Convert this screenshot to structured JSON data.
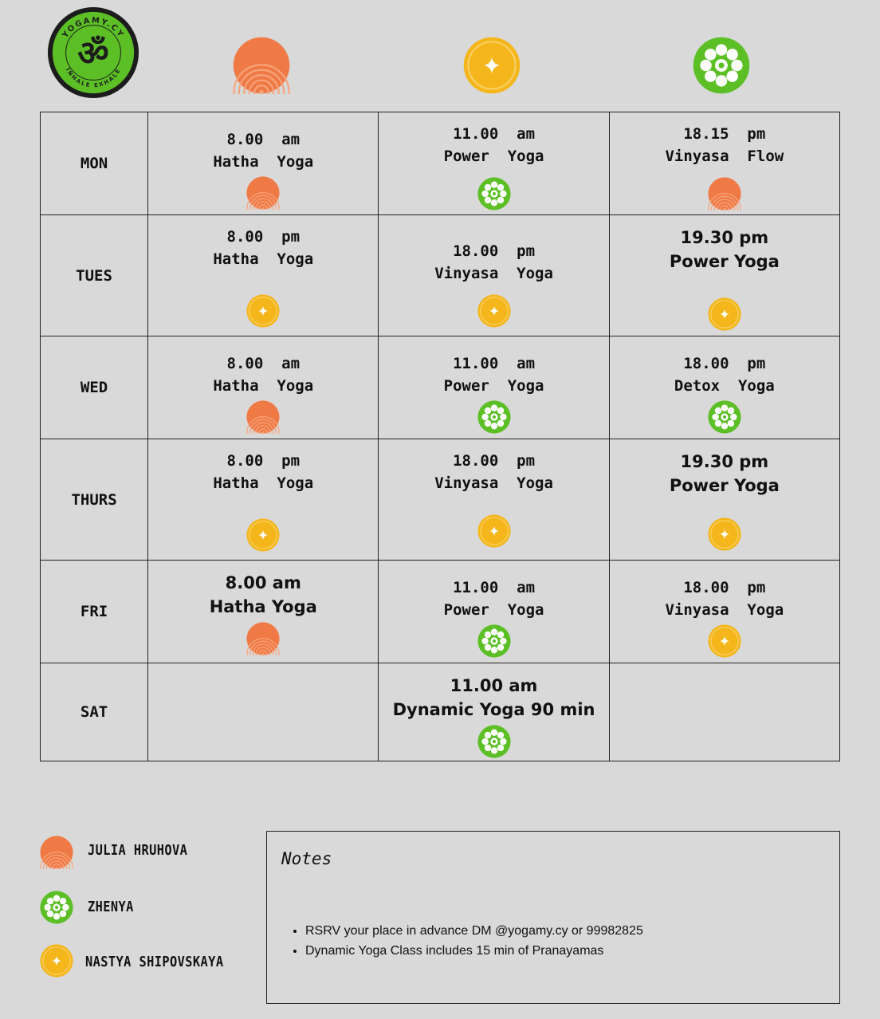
{
  "logo": {
    "name": "YOGAMY.CY",
    "tagline": "INHALE EXHALE",
    "glyph": "ॐ",
    "icon": "om-logo-icon"
  },
  "colors": {
    "orange": "#f07a45",
    "yellow": "#f4b61a",
    "green": "#5cbf26",
    "background": "#d9d9d9"
  },
  "instructors": [
    {
      "name": "JULIA HRUHOVA",
      "icon": "orange-rings-icon"
    },
    {
      "name": "ZHENYA",
      "icon": "green-asterisk-icon"
    },
    {
      "name": "NASTYA SHIPOVSKAYA",
      "icon": "yellow-star-icon"
    }
  ],
  "schedule": [
    {
      "day": "MON",
      "cells": [
        {
          "time": "8.00  am",
          "class": "Hatha  Yoga",
          "icon": "orange",
          "font": "mono"
        },
        {
          "time": "11.00  am",
          "class": "Power  Yoga",
          "icon": "green",
          "font": "mono"
        },
        {
          "time": "18.15  pm",
          "class": "Vinyasa  Flow",
          "icon": "orange",
          "font": "mono"
        }
      ]
    },
    {
      "day": "TUES",
      "cells": [
        {
          "time": "8.00  pm",
          "class": "Hatha  Yoga",
          "icon": "yellow",
          "font": "mono"
        },
        {
          "time": "18.00  pm",
          "class": "Vinyasa  Yoga",
          "icon": "yellow",
          "font": "mono"
        },
        {
          "time": "19.30 pm",
          "class": "Power Yoga",
          "icon": "yellow",
          "font": "sans"
        }
      ]
    },
    {
      "day": "WED",
      "cells": [
        {
          "time": "8.00  am",
          "class": "Hatha  Yoga",
          "icon": "orange",
          "font": "mono"
        },
        {
          "time": "11.00  am",
          "class": "Power  Yoga",
          "icon": "green",
          "font": "mono"
        },
        {
          "time": "18.00  pm",
          "class": "Detox  Yoga",
          "icon": "green",
          "font": "mono"
        }
      ]
    },
    {
      "day": "THURS",
      "cells": [
        {
          "time": "8.00  pm",
          "class": "Hatha  Yoga",
          "icon": "yellow",
          "font": "mono"
        },
        {
          "time": "18.00  pm",
          "class": "Vinyasa  Yoga",
          "icon": "yellow",
          "font": "mono"
        },
        {
          "time": "19.30 pm",
          "class": "Power Yoga",
          "icon": "yellow",
          "font": "sans"
        }
      ]
    },
    {
      "day": "FRI",
      "cells": [
        {
          "time": "8.00 am",
          "class": "Hatha Yoga",
          "icon": "orange",
          "font": "sans"
        },
        {
          "time": "11.00  am",
          "class": "Power  Yoga",
          "icon": "green",
          "font": "mono"
        },
        {
          "time": "18.00  pm",
          "class": "Vinyasa  Yoga",
          "icon": "yellow",
          "font": "mono"
        }
      ]
    },
    {
      "day": "SAT",
      "cells": [
        null,
        {
          "time": "11.00 am",
          "class": "Dynamic Yoga 90 min",
          "icon": "green",
          "font": "sans"
        },
        null
      ]
    }
  ],
  "notes": {
    "title": "Notes",
    "items": [
      "RSRV your place in advance DM @yogamy.cy or 99982825",
      "Dynamic Yoga Class includes 15 min of Pranayamas"
    ]
  }
}
